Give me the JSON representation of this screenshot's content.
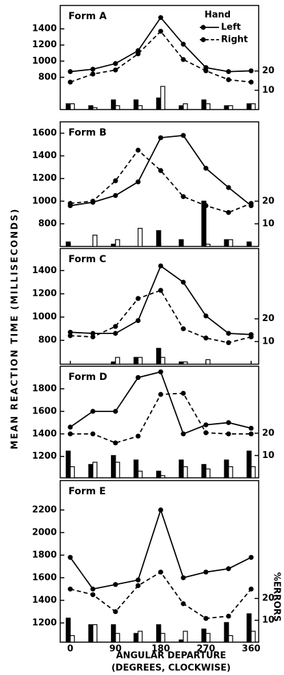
{
  "figure": {
    "ylabel": "MEAN REACTION TIME (MILLISECONDS)",
    "xlabel": "ANGULAR DEPARTURE",
    "xlabel_sub": "(DEGREES, CLOCKWISE)",
    "y2label": "%ERRORS",
    "legend_title": "Hand"
  },
  "chart_data": [
    {
      "type": "line",
      "title": "Form A",
      "x": [
        0,
        45,
        90,
        135,
        180,
        225,
        270,
        315,
        360
      ],
      "xlim": [
        -20,
        375
      ],
      "xticks": [
        0,
        90,
        180,
        270,
        360
      ],
      "ylim": [
        400,
        1690
      ],
      "yticks": [
        800,
        1000,
        1200,
        1400
      ],
      "y2lim": [
        0,
        54
      ],
      "y2ticks": [
        10,
        20
      ],
      "legend": "upper right",
      "series": [
        {
          "name": "Left",
          "color": "#000000",
          "dash": false,
          "values": [
            870,
            900,
            970,
            1130,
            1540,
            1210,
            920,
            870,
            880
          ]
        },
        {
          "name": "Right",
          "color": "#000000",
          "dash": true,
          "values": [
            740,
            840,
            890,
            1090,
            1370,
            1020,
            880,
            770,
            740
          ]
        },
        {
          "type": "bar",
          "axis": "y2",
          "color": "#000000",
          "values": [
            3,
            2,
            5,
            5,
            6,
            2,
            5,
            2,
            3
          ]
        },
        {
          "type": "bar",
          "axis": "y2",
          "color": "#ffffff",
          "values": [
            3,
            1,
            2,
            2,
            12,
            3,
            3,
            2,
            3
          ]
        }
      ]
    },
    {
      "type": "line",
      "title": "Form B",
      "x": [
        0,
        45,
        90,
        135,
        180,
        225,
        270,
        315,
        360
      ],
      "xlim": [
        -20,
        375
      ],
      "xticks": [
        0,
        90,
        180,
        270,
        360
      ],
      "ylim": [
        600,
        1700
      ],
      "yticks": [
        800,
        1000,
        1200,
        1400,
        1600
      ],
      "y2lim": [
        0,
        55
      ],
      "y2ticks": [
        10,
        20
      ],
      "series": [
        {
          "color": "#000000",
          "dash": false,
          "values": [
            960,
            990,
            1050,
            1170,
            1560,
            1580,
            1290,
            1120,
            960
          ]
        },
        {
          "color": "#000000",
          "dash": true,
          "values": [
            980,
            1000,
            1180,
            1450,
            1270,
            1040,
            960,
            900,
            980
          ]
        },
        {
          "type": "bar",
          "axis": "y2",
          "color": "#000000",
          "values": [
            2,
            0,
            1,
            0,
            7,
            3,
            20,
            3,
            2
          ]
        },
        {
          "type": "bar",
          "axis": "y2",
          "color": "#ffffff",
          "values": [
            0,
            5,
            3,
            8,
            0,
            0,
            1,
            3,
            0
          ]
        }
      ]
    },
    {
      "type": "line",
      "title": "Form C",
      "x": [
        0,
        45,
        90,
        135,
        180,
        225,
        270,
        315,
        360
      ],
      "xlim": [
        -20,
        375
      ],
      "xticks": [
        0,
        90,
        180,
        270,
        360
      ],
      "ylim": [
        595,
        1590
      ],
      "yticks": [
        800,
        1000,
        1200,
        1400
      ],
      "y2lim": [
        0,
        51
      ],
      "y2ticks": [
        10,
        20
      ],
      "series": [
        {
          "color": "#000000",
          "dash": false,
          "values": [
            870,
            860,
            860,
            970,
            1440,
            1300,
            1010,
            860,
            850
          ]
        },
        {
          "color": "#000000",
          "dash": true,
          "values": [
            840,
            830,
            920,
            1160,
            1230,
            900,
            820,
            780,
            830
          ]
        },
        {
          "type": "bar",
          "axis": "y2",
          "color": "#000000",
          "values": [
            0,
            0,
            1,
            3,
            7,
            1,
            0,
            0,
            0
          ]
        },
        {
          "type": "bar",
          "axis": "y2",
          "color": "#ffffff",
          "values": [
            0,
            0,
            3,
            3,
            3,
            1,
            2,
            0,
            0
          ]
        }
      ]
    },
    {
      "type": "line",
      "title": "Form D",
      "x": [
        0,
        45,
        90,
        135,
        180,
        225,
        270,
        315,
        360
      ],
      "xlim": [
        -20,
        375
      ],
      "xticks": [
        0,
        90,
        180,
        270,
        360
      ],
      "ylim": [
        1010,
        2000
      ],
      "yticks": [
        1200,
        1400,
        1600,
        1800
      ],
      "y2lim": [
        0,
        50
      ],
      "y2ticks": [
        10,
        20
      ],
      "series": [
        {
          "color": "#000000",
          "dash": false,
          "values": [
            1460,
            1600,
            1600,
            1900,
            1950,
            1400,
            1480,
            1500,
            1450
          ]
        },
        {
          "color": "#000000",
          "dash": true,
          "values": [
            1400,
            1400,
            1320,
            1380,
            1750,
            1760,
            1410,
            1400,
            1400
          ]
        },
        {
          "type": "bar",
          "axis": "y2",
          "color": "#000000",
          "values": [
            12,
            6,
            10,
            8,
            3,
            8,
            6,
            8,
            12
          ]
        },
        {
          "type": "bar",
          "axis": "y2",
          "color": "#ffffff",
          "values": [
            5,
            7,
            7,
            3,
            1,
            5,
            4,
            5,
            5
          ]
        }
      ]
    },
    {
      "type": "line",
      "title": "Form E",
      "x": [
        0,
        45,
        90,
        135,
        180,
        225,
        270,
        315,
        360
      ],
      "xlim": [
        -20,
        375
      ],
      "xticks": [
        0,
        90,
        180,
        270,
        360
      ],
      "ylim": [
        1030,
        2460
      ],
      "yticks": [
        1200,
        1400,
        1600,
        1800,
        2000,
        2200
      ],
      "y2lim": [
        0,
        74
      ],
      "y2ticks": [
        10,
        20
      ],
      "series": [
        {
          "color": "#000000",
          "dash": false,
          "values": [
            1780,
            1500,
            1540,
            1580,
            2200,
            1600,
            1650,
            1680,
            1780
          ]
        },
        {
          "color": "#000000",
          "dash": true,
          "values": [
            1500,
            1450,
            1300,
            1530,
            1650,
            1370,
            1240,
            1260,
            1500
          ]
        },
        {
          "type": "bar",
          "axis": "y2",
          "color": "#000000",
          "values": [
            11,
            8,
            8,
            4,
            8,
            1,
            6,
            9,
            13
          ]
        },
        {
          "type": "bar",
          "axis": "y2",
          "color": "#ffffff",
          "values": [
            3,
            8,
            4,
            5,
            4,
            5,
            4,
            3,
            5
          ]
        }
      ]
    }
  ]
}
